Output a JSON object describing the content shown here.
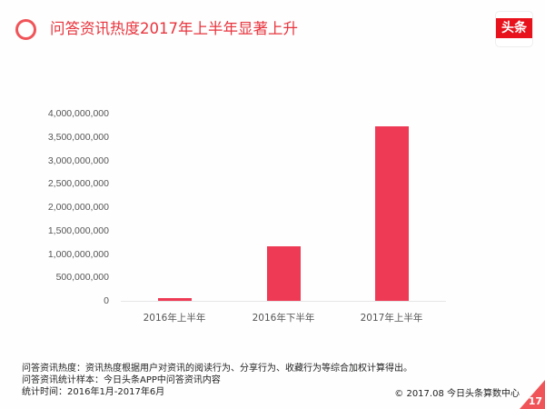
{
  "header": {
    "title": "问答资讯热度2017年上半年显著上升",
    "icon": "ring-icon",
    "logo_text": "头条"
  },
  "colors": {
    "accent": "#e8343e",
    "bar": "#ee3a54",
    "ring": "#f05459",
    "logo_red": "#e8121c"
  },
  "chart_data": {
    "type": "bar",
    "title": "问答资讯热度2017年上半年显著上升",
    "categories": [
      "2016年上半年",
      "2016年下半年",
      "2017年上半年"
    ],
    "values": [
      60000000,
      1160000000,
      3720000000
    ],
    "xlabel": "",
    "ylabel": "",
    "ylim": [
      0,
      4000000000
    ],
    "yticks": [
      0,
      500000000,
      1000000000,
      1500000000,
      2000000000,
      2500000000,
      3000000000,
      3500000000,
      4000000000
    ],
    "ytick_labels": [
      "0",
      "500,000,000",
      "1,000,000,000",
      "1,500,000,000",
      "2,000,000,000",
      "2,500,000,000",
      "3,000,000,000",
      "3,500,000,000",
      "4,000,000,000"
    ],
    "grid": false,
    "legend": null
  },
  "footer": {
    "notes": [
      "问答资讯热度：资讯热度根据用户对资讯的阅读行为、分享行为、收藏行为等综合加权计算得出。",
      "问答资讯统计样本：今日头条APP中问答资讯内容",
      "统计时间：2016年1月-2017年6月"
    ],
    "copyright": "© 2017.08 今日头条算数中心",
    "page_number": "17"
  }
}
